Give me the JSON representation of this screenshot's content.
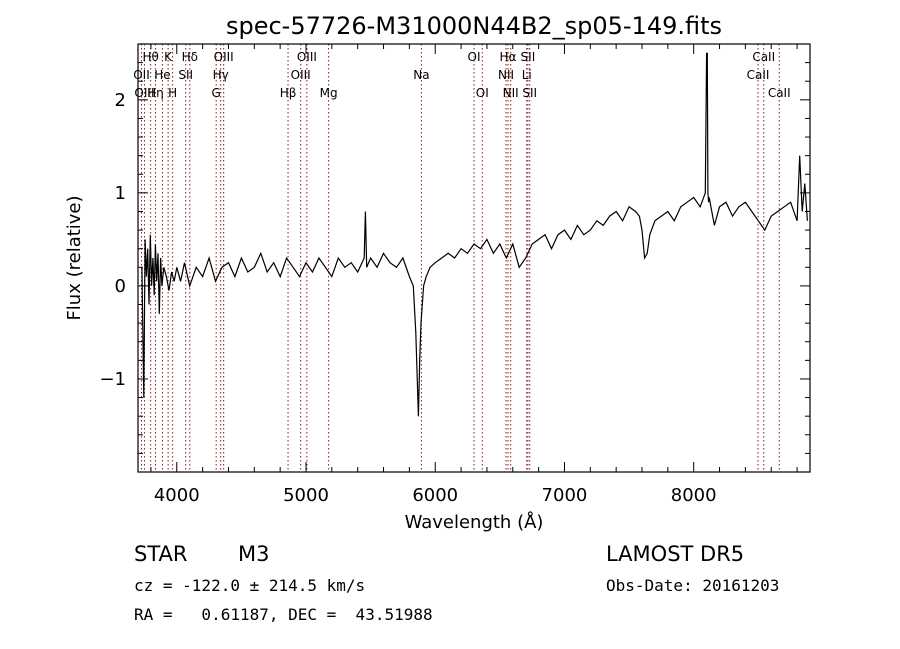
{
  "chart_data": {
    "type": "line",
    "title": "spec-57726-M31000N44B2_sp05-149.fits",
    "xlabel": "Wavelength (Å)",
    "ylabel": "Flux (relative)",
    "xlim": [
      3700,
      8900
    ],
    "ylim": [
      -2.0,
      2.6
    ],
    "xticks": [
      4000,
      5000,
      6000,
      7000,
      8000
    ],
    "yticks": [
      -1,
      0,
      1,
      2
    ],
    "grid": false,
    "series": [
      {
        "color": "#000000",
        "x": [
          3730,
          3745,
          3755,
          3765,
          3775,
          3785,
          3795,
          3805,
          3815,
          3825,
          3835,
          3845,
          3855,
          3865,
          3875,
          3885,
          3900,
          3920,
          3940,
          3960,
          3980,
          4000,
          4030,
          4060,
          4100,
          4150,
          4200,
          4250,
          4300,
          4350,
          4400,
          4450,
          4500,
          4550,
          4600,
          4650,
          4700,
          4750,
          4800,
          4850,
          4900,
          4950,
          5000,
          5050,
          5100,
          5150,
          5200,
          5250,
          5300,
          5350,
          5400,
          5450,
          5460,
          5470,
          5500,
          5550,
          5600,
          5650,
          5700,
          5750,
          5800,
          5830,
          5850,
          5870,
          5880,
          5890,
          5900,
          5910,
          5930,
          5960,
          6000,
          6050,
          6100,
          6150,
          6200,
          6250,
          6300,
          6350,
          6400,
          6450,
          6500,
          6550,
          6600,
          6650,
          6700,
          6750,
          6800,
          6850,
          6900,
          6950,
          7000,
          7050,
          7100,
          7150,
          7200,
          7250,
          7300,
          7350,
          7400,
          7450,
          7500,
          7550,
          7580,
          7600,
          7620,
          7640,
          7660,
          7700,
          7750,
          7800,
          7850,
          7900,
          7950,
          8000,
          8050,
          8090,
          8100,
          8105,
          8110,
          8115,
          8120,
          8140,
          8160,
          8200,
          8250,
          8300,
          8350,
          8400,
          8450,
          8500,
          8550,
          8600,
          8650,
          8700,
          8750,
          8800,
          8820,
          8840,
          8860,
          8880
        ],
        "values": [
          0.2,
          -1.2,
          0.5,
          0.1,
          0.4,
          -0.2,
          0.55,
          0.0,
          0.3,
          -0.1,
          0.45,
          0.05,
          0.35,
          -0.3,
          0.3,
          0.0,
          0.2,
          0.1,
          -0.05,
          0.15,
          0.05,
          0.2,
          0.05,
          0.25,
          0.0,
          0.2,
          0.1,
          0.3,
          0.05,
          0.2,
          0.25,
          0.1,
          0.3,
          0.15,
          0.2,
          0.35,
          0.15,
          0.25,
          0.1,
          0.3,
          0.2,
          0.1,
          0.25,
          0.15,
          0.3,
          0.2,
          0.1,
          0.3,
          0.2,
          0.25,
          0.15,
          0.3,
          0.8,
          0.2,
          0.3,
          0.2,
          0.35,
          0.25,
          0.2,
          0.3,
          0.1,
          0.0,
          -0.5,
          -1.4,
          -0.8,
          -0.4,
          -0.2,
          0.0,
          0.1,
          0.2,
          0.25,
          0.3,
          0.35,
          0.3,
          0.4,
          0.35,
          0.45,
          0.4,
          0.5,
          0.35,
          0.45,
          0.3,
          0.45,
          0.2,
          0.3,
          0.45,
          0.5,
          0.55,
          0.4,
          0.55,
          0.6,
          0.5,
          0.65,
          0.55,
          0.6,
          0.7,
          0.65,
          0.75,
          0.8,
          0.7,
          0.85,
          0.8,
          0.75,
          0.6,
          0.3,
          0.35,
          0.55,
          0.7,
          0.75,
          0.8,
          0.7,
          0.85,
          0.9,
          0.95,
          0.85,
          1.0,
          2.5,
          2.5,
          1.0,
          0.9,
          0.95,
          0.8,
          0.65,
          0.85,
          0.9,
          0.75,
          0.85,
          0.9,
          0.8,
          0.7,
          0.6,
          0.75,
          0.8,
          0.85,
          0.9,
          0.7,
          1.4,
          0.8,
          1.1,
          0.7
        ]
      }
    ],
    "lines": [
      {
        "label": "Hθ",
        "wl": 3798,
        "row": 0
      },
      {
        "label": "OII",
        "wl": 3727,
        "row": 1
      },
      {
        "label": "OIII",
        "wl": 3750,
        "row": 2
      },
      {
        "label": "Hη",
        "wl": 3835,
        "row": 2
      },
      {
        "label": "He",
        "wl": 3889,
        "row": 1
      },
      {
        "label": "K",
        "wl": 3933,
        "row": 0
      },
      {
        "label": "H",
        "wl": 3968,
        "row": 2
      },
      {
        "label": "Hδ",
        "wl": 4101,
        "row": 0
      },
      {
        "label": "SII",
        "wl": 4069,
        "row": 1
      },
      {
        "label": "OIII",
        "wl": 4363,
        "row": 0
      },
      {
        "label": "Hγ",
        "wl": 4340,
        "row": 1
      },
      {
        "label": "G",
        "wl": 4305,
        "row": 2
      },
      {
        "label": "Hβ",
        "wl": 4861,
        "row": 2
      },
      {
        "label": "OIII",
        "wl": 5007,
        "row": 0
      },
      {
        "label": "OIII",
        "wl": 4959,
        "row": 1
      },
      {
        "label": "Mg",
        "wl": 5175,
        "row": 2
      },
      {
        "label": "Na",
        "wl": 5893,
        "row": 1
      },
      {
        "label": "OI",
        "wl": 6300,
        "row": 0
      },
      {
        "label": "OI",
        "wl": 6364,
        "row": 2
      },
      {
        "label": "Hα",
        "wl": 6563,
        "row": 0
      },
      {
        "label": "NII",
        "wl": 6548,
        "row": 1
      },
      {
        "label": "NII",
        "wl": 6584,
        "row": 2
      },
      {
        "label": "SII",
        "wl": 6717,
        "row": 0
      },
      {
        "label": "Li",
        "wl": 6708,
        "row": 1
      },
      {
        "label": "SII",
        "wl": 6731,
        "row": 2
      },
      {
        "label": "CaII",
        "wl": 8542,
        "row": 0
      },
      {
        "label": "CaII",
        "wl": 8498,
        "row": 1
      },
      {
        "label": "CaII",
        "wl": 8662,
        "row": 2
      }
    ]
  },
  "info": {
    "class_label": "STAR",
    "subclass": "M3",
    "survey": "LAMOST DR5",
    "cz": "cz = -122.0 ± 214.5 km/s",
    "obs_date": "Obs-Date: 20161203",
    "radec": "RA =   0.61187, DEC =  43.51988"
  },
  "colors": {
    "line_marker": "#8b1a1a",
    "spectrum": "#000000",
    "axes": "#000000"
  }
}
